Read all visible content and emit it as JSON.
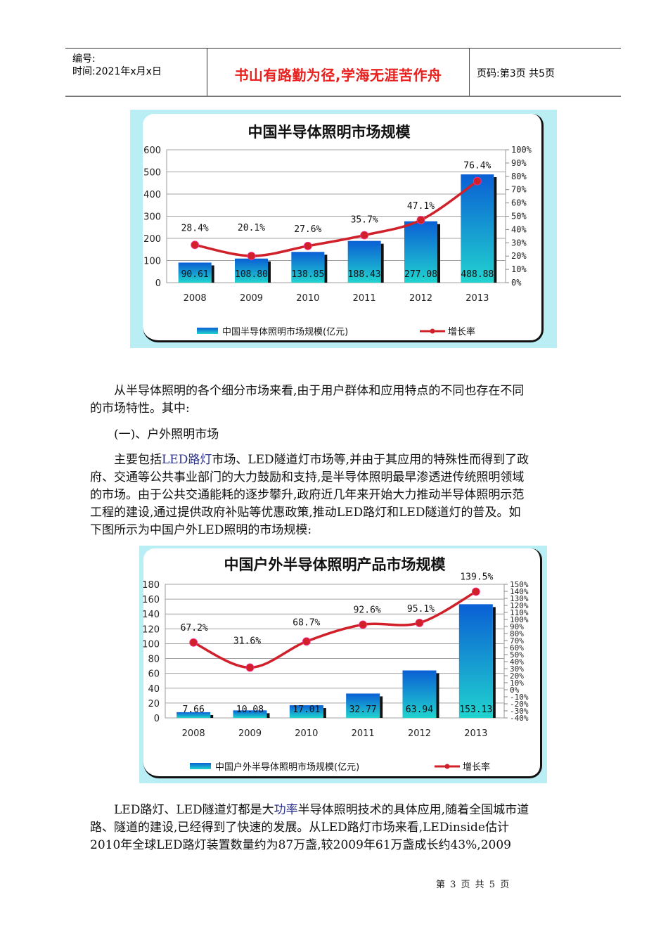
{
  "header": {
    "serial_label": "编号:",
    "time_label": "时间:2021年x月x日",
    "motto": "书山有路勤为径,学海无涯苦作舟",
    "page_label": "页码:第3页 共5页"
  },
  "chart_data": [
    {
      "type": "bar",
      "title": "中国半导体照明市场规模",
      "categories": [
        "2008",
        "2009",
        "2010",
        "2011",
        "2012",
        "2013"
      ],
      "series": [
        {
          "name": "中国半导体照明市场规模(亿元)",
          "type": "bar",
          "values": [
            90.61,
            108.8,
            138.85,
            188.43,
            277.08,
            488.88
          ],
          "labels": [
            "90.61",
            "108.80",
            "138.85",
            "188.43",
            "277.08",
            "488.88"
          ]
        },
        {
          "name": "增长率",
          "type": "line",
          "axis": "right",
          "values": [
            28.4,
            20.1,
            27.6,
            35.7,
            47.1,
            76.4
          ],
          "labels": [
            "28.4%",
            "20.1%",
            "27.6%",
            "35.7%",
            "47.1%",
            "76.4%"
          ]
        }
      ],
      "ylim": [
        0,
        600
      ],
      "yticks": [
        "0",
        "100",
        "200",
        "300",
        "400",
        "500",
        "600"
      ],
      "y2lim": [
        0,
        100
      ],
      "y2ticks": [
        "0%",
        "10%",
        "20%",
        "30%",
        "40%",
        "50%",
        "60%",
        "70%",
        "80%",
        "90%",
        "100%"
      ],
      "grid": true,
      "legend_position": "bottom",
      "colors": {
        "bar_top": "#0a5fd4",
        "bar_bottom": "#21d3cf",
        "line": "#d0202a",
        "frame": "#b9eef4"
      }
    },
    {
      "type": "bar",
      "title": "中国户外半导体照明产品市场规模",
      "categories": [
        "2008",
        "2009",
        "2010",
        "2011",
        "2012",
        "2013"
      ],
      "series": [
        {
          "name": "中国户外半导体照明市场规模(亿元)",
          "type": "bar",
          "values": [
            7.66,
            10.08,
            17.01,
            32.77,
            63.94,
            153.13
          ],
          "labels": [
            "7.66",
            "10.08",
            "17.01",
            "32.77",
            "63.94",
            "153.13"
          ]
        },
        {
          "name": "增长率",
          "type": "line",
          "axis": "right",
          "values": [
            67.2,
            31.6,
            68.7,
            92.6,
            95.1,
            139.5
          ],
          "labels": [
            "67.2%",
            "31.6%",
            "68.7%",
            "92.6%",
            "95.1%",
            "139.5%"
          ]
        }
      ],
      "ylim": [
        0,
        180
      ],
      "yticks": [
        "0",
        "20",
        "40",
        "60",
        "80",
        "100",
        "120",
        "140",
        "160",
        "180"
      ],
      "y2lim": [
        -40,
        150
      ],
      "y2ticks": [
        "-40%",
        "-30%",
        "-20%",
        "-10%",
        "0%",
        "10%",
        "20%",
        "30%",
        "40%",
        "50%",
        "60%",
        "70%",
        "80%",
        "90%",
        "100%",
        "110%",
        "120%",
        "130%",
        "140%",
        "150%"
      ],
      "grid": true,
      "legend_position": "bottom",
      "colors": {
        "bar_top": "#0a5fd4",
        "bar_bottom": "#21d3cf",
        "line": "#d0202a",
        "frame": "#b9eef4"
      }
    }
  ],
  "body": {
    "p1_line1": "从半导体照明的各个细分市场来看,由于用户群体和应用特点的不同也存在不同",
    "p1_line2": "的市场特性。其中:",
    "heading": "(一)、户外照明市场",
    "p2_pre": "主要包括",
    "p2_link": "LED路灯",
    "p2_line1_rest": "市场、LED隧道灯市场等,并由于其应用的特殊性而得到了政",
    "p2_line2": "府、交通等公共事业部门的大力鼓励和支持,是半导体照明最早渗透进传统照明领域",
    "p2_line3": "的市场。由于公共交通能耗的逐步攀升,政府近几年来开始大力推动半导体照明示范",
    "p2_line4": "工程的建设,通过提供政府补贴等优惠政策,推动LED路灯和LED隧道灯的普及。如",
    "p2_line5": "下图所示为中国户外LED照明的市场规模:",
    "p3_pre": "LED路灯、LED隧道灯都是大",
    "p3_link": "功率",
    "p3_line1_rest": "半导体照明技术的具体应用,随着全国城市道",
    "p3_line2": "路、隧道的建设,已经得到了快速的发展。从LED路灯市场来看,LEDinside估计",
    "p3_line3": "2010年全球LED路灯装置数量约为87万盏,较2009年61万盏成长约43%,2009"
  },
  "footer": {
    "page_text": "第 3 页 共 5 页"
  }
}
